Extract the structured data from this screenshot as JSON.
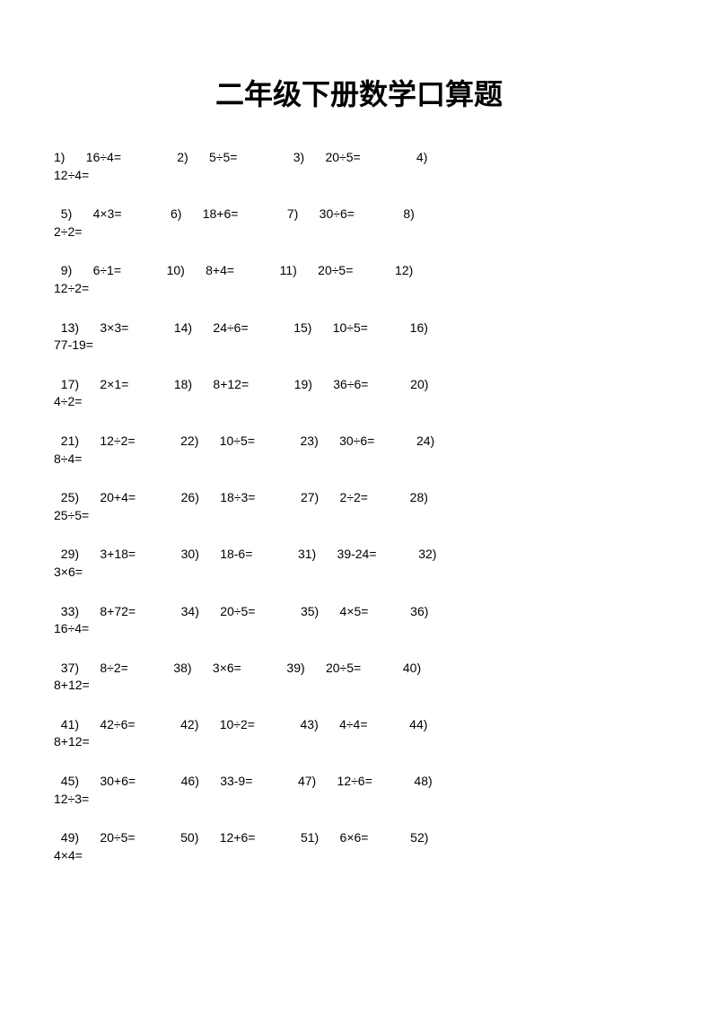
{
  "title": "二年级下册数学口算题",
  "groups": [
    {
      "line1": "1)      16÷4=                2)      5÷5=                3)      20÷5=                4)",
      "line2": "12÷4="
    },
    {
      "line1": "  5)      4×3=              6)      18+6=              7)      30÷6=              8)",
      "line2": "2÷2="
    },
    {
      "line1": "  9)      6÷1=             10)      8+4=             11)      20÷5=            12)",
      "line2": "12÷2="
    },
    {
      "line1": "  13)      3×3=             14)      24÷6=             15)      10÷5=            16)",
      "line2": "77-19="
    },
    {
      "line1": "  17)      2×1=             18)      8+12=             19)      36÷6=            20)",
      "line2": "4÷2="
    },
    {
      "line1": "  21)      12÷2=             22)      10÷5=             23)      30÷6=            24)",
      "line2": "8÷4="
    },
    {
      "line1": "  25)      20+4=             26)      18÷3=             27)      2÷2=            28)",
      "line2": "25÷5="
    },
    {
      "line1": "  29)      3+18=             30)      18-6=             31)      39-24=            32)",
      "line2": "3×6="
    },
    {
      "line1": "  33)      8+72=             34)      20÷5=             35)      4×5=            36)",
      "line2": "16÷4="
    },
    {
      "line1": "  37)      8÷2=             38)      3×6=             39)      20÷5=            40)",
      "line2": "8+12="
    },
    {
      "line1": "  41)      42÷6=             42)      10÷2=             43)      4÷4=            44)",
      "line2": "8+12="
    },
    {
      "line1": "  45)      30+6=             46)      33-9=             47)      12÷6=            48)",
      "line2": "12÷3="
    },
    {
      "line1": "  49)      20÷5=             50)      12+6=             51)      6×6=            52)",
      "line2": "4×4="
    }
  ]
}
